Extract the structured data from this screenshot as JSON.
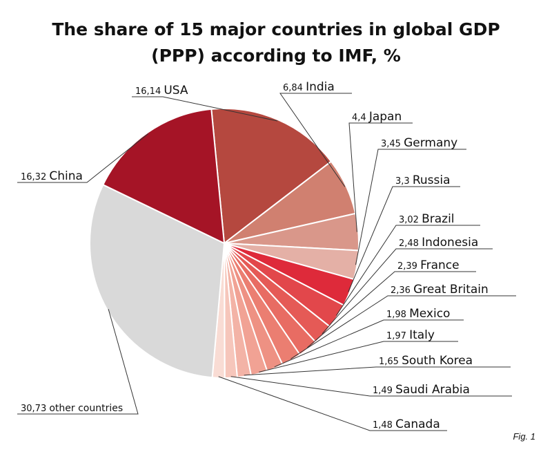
{
  "chart_data": {
    "type": "pie",
    "title_line1": "The share of 15 major countries in global GDP",
    "title_line2": "(PPP) according to IMF, %",
    "slices": [
      {
        "name": "USA",
        "value_label": "16,14",
        "value": 16.14,
        "color": "#b5483f"
      },
      {
        "name": "India",
        "value_label": "6,84",
        "value": 6.84,
        "color": "#d08070"
      },
      {
        "name": "Japan",
        "value_label": "4,4",
        "value": 4.4,
        "color": "#d9978a"
      },
      {
        "name": "Germany",
        "value_label": "3,45",
        "value": 3.45,
        "color": "#e4b0a6"
      },
      {
        "name": "Russia",
        "value_label": "3,3",
        "value": 3.3,
        "color": "#de2a3a"
      },
      {
        "name": "Brazil",
        "value_label": "3,02",
        "value": 3.02,
        "color": "#e2474b"
      },
      {
        "name": "Indonesia",
        "value_label": "2,48",
        "value": 2.48,
        "color": "#e55a56"
      },
      {
        "name": "France",
        "value_label": "2,39",
        "value": 2.39,
        "color": "#e86c63"
      },
      {
        "name": "Great Britain",
        "value_label": "2,36",
        "value": 2.36,
        "color": "#eb7e71"
      },
      {
        "name": "Mexico",
        "value_label": "1,98",
        "value": 1.98,
        "color": "#ee9183"
      },
      {
        "name": "Italy",
        "value_label": "1,97",
        "value": 1.97,
        "color": "#f1a294"
      },
      {
        "name": "South Korea",
        "value_label": "1,65",
        "value": 1.65,
        "color": "#f3b3a6"
      },
      {
        "name": "Saudi Arabia",
        "value_label": "1,49",
        "value": 1.49,
        "color": "#f6c6bb"
      },
      {
        "name": "Canada",
        "value_label": "1,48",
        "value": 1.48,
        "color": "#f9dcd4"
      },
      {
        "name": "other countries",
        "value_label": "30,73",
        "value": 30.73,
        "color": "#d9d9d9"
      },
      {
        "name": "China",
        "value_label": "16,32",
        "value": 16.32,
        "color": "#a51426"
      }
    ]
  },
  "fig_label": "Fig. 1"
}
